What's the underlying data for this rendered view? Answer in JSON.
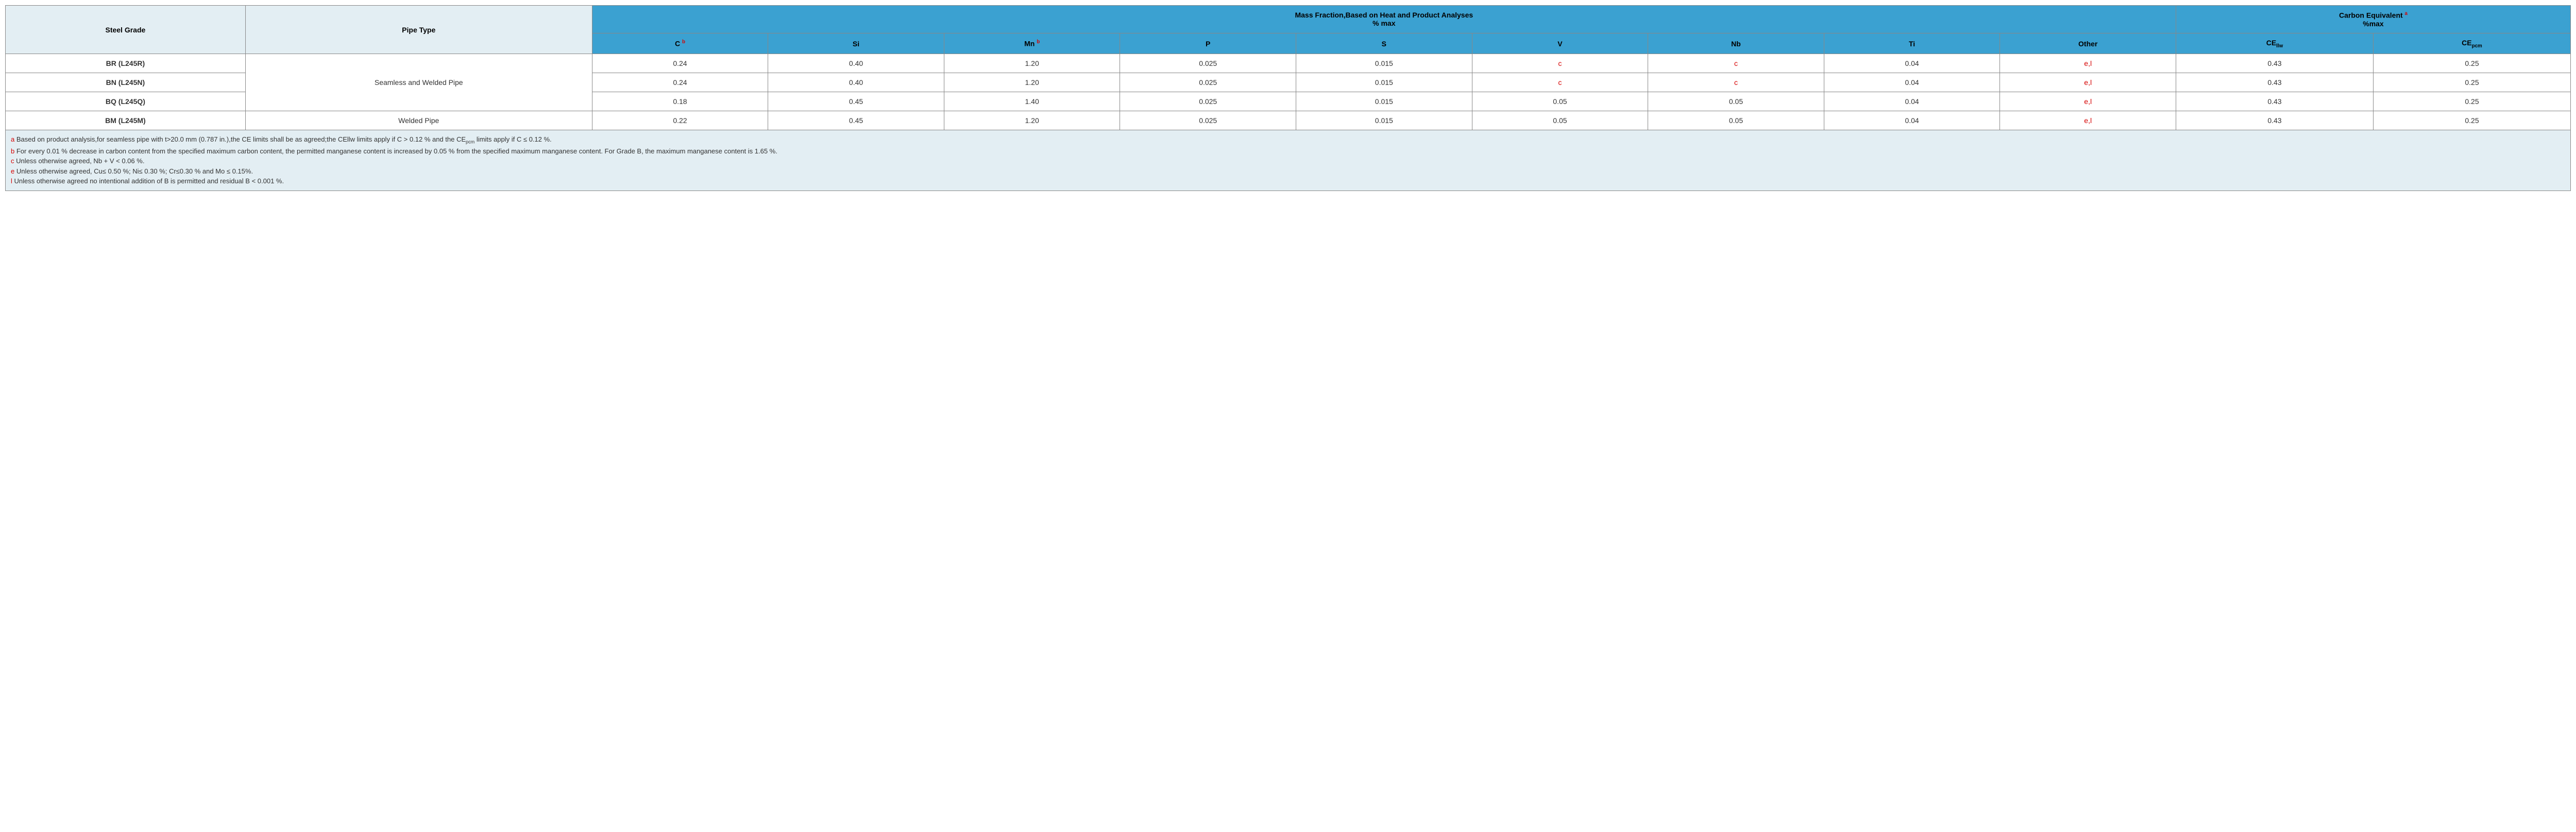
{
  "header": {
    "steel_grade": "Steel Grade",
    "pipe_type": "Pipe Type",
    "mass_fraction_title_l1": "Mass Fraction,Based on Heat and Product Analyses",
    "mass_fraction_title_l2": "% max",
    "carbon_eq_title_l1": "Carbon Equivalent",
    "carbon_eq_note": "a",
    "carbon_eq_title_l2": "%max",
    "cols": {
      "c": "C",
      "c_note": "b",
      "si": "Si",
      "mn": "Mn",
      "mn_note": "b",
      "p": "P",
      "s": "S",
      "v": "V",
      "nb": "Nb",
      "ti": "Ti",
      "other": "Other",
      "cellw": "CE",
      "cellw_sub": "llw",
      "cepcm": "CE",
      "cepcm_sub": "pcm"
    }
  },
  "rows": [
    {
      "grade": "BR (L245R)",
      "c": "0.24",
      "si": "0.40",
      "mn": "1.20",
      "p": "0.025",
      "s": "0.015",
      "v": "c",
      "v_red": true,
      "nb": "c",
      "nb_red": true,
      "ti": "0.04",
      "other": "e,l",
      "other_red": true,
      "cellw": "0.43",
      "cepcm": "0.25"
    },
    {
      "grade": "BN (L245N)",
      "c": "0.24",
      "si": "0.40",
      "mn": "1.20",
      "p": "0.025",
      "s": "0.015",
      "v": "c",
      "v_red": true,
      "nb": "c",
      "nb_red": true,
      "ti": "0.04",
      "other": "e,l",
      "other_red": true,
      "cellw": "0.43",
      "cepcm": "0.25"
    },
    {
      "grade": "BQ (L245Q)",
      "c": "0.18",
      "si": "0.45",
      "mn": "1.40",
      "p": "0.025",
      "s": "0.015",
      "v": "0.05",
      "v_red": false,
      "nb": "0.05",
      "nb_red": false,
      "ti": "0.04",
      "other": "e,l",
      "other_red": true,
      "cellw": "0.43",
      "cepcm": "0.25"
    },
    {
      "grade": "BM (L245M)",
      "c": "0.22",
      "si": "0.45",
      "mn": "1.20",
      "p": "0.025",
      "s": "0.015",
      "v": "0.05",
      "v_red": false,
      "nb": "0.05",
      "nb_red": false,
      "ti": "0.04",
      "other": "e,l",
      "other_red": true,
      "cellw": "0.43",
      "cepcm": "0.25"
    }
  ],
  "pipe_types": {
    "seamless_welded": "Seamless and Welded Pipe",
    "welded": "Welded Pipe"
  },
  "footnotes": [
    {
      "key": "a",
      "text": "Based on product analysis,for seamless pipe with t>20.0 mm (0.787 in.),the CE limits shall be as agreed;the CEllw limits apply if C > 0.12 % and the CE",
      "sub": "pcm",
      "text2": " limits apply if C ≤ 0.12 %."
    },
    {
      "key": "b",
      "text": "For every 0.01 % decrease in carbon content from the specified maximum carbon content, the permitted manganese content is increased by 0.05 % from the specified maximum manganese content. For Grade B, the maximum manganese content is 1.65 %."
    },
    {
      "key": "c",
      "text": "Unless otherwise agreed, Nb + V < 0.06 %."
    },
    {
      "key": "e",
      "text": "Unless otherwise agreed, Cu≤ 0.50 %; Ni≤ 0.30 %; Cr≤0.30 % and Mo ≤ 0.15%."
    },
    {
      "key": "l",
      "text": "Unless otherwise agreed no intentional addition of B is permitted and residual B < 0.001 %."
    }
  ],
  "colors": {
    "header_blue": "#3ba1d1",
    "header_light": "#e3eef3",
    "note_red": "#d60000",
    "border": "#888888",
    "bg": "#ffffff"
  }
}
